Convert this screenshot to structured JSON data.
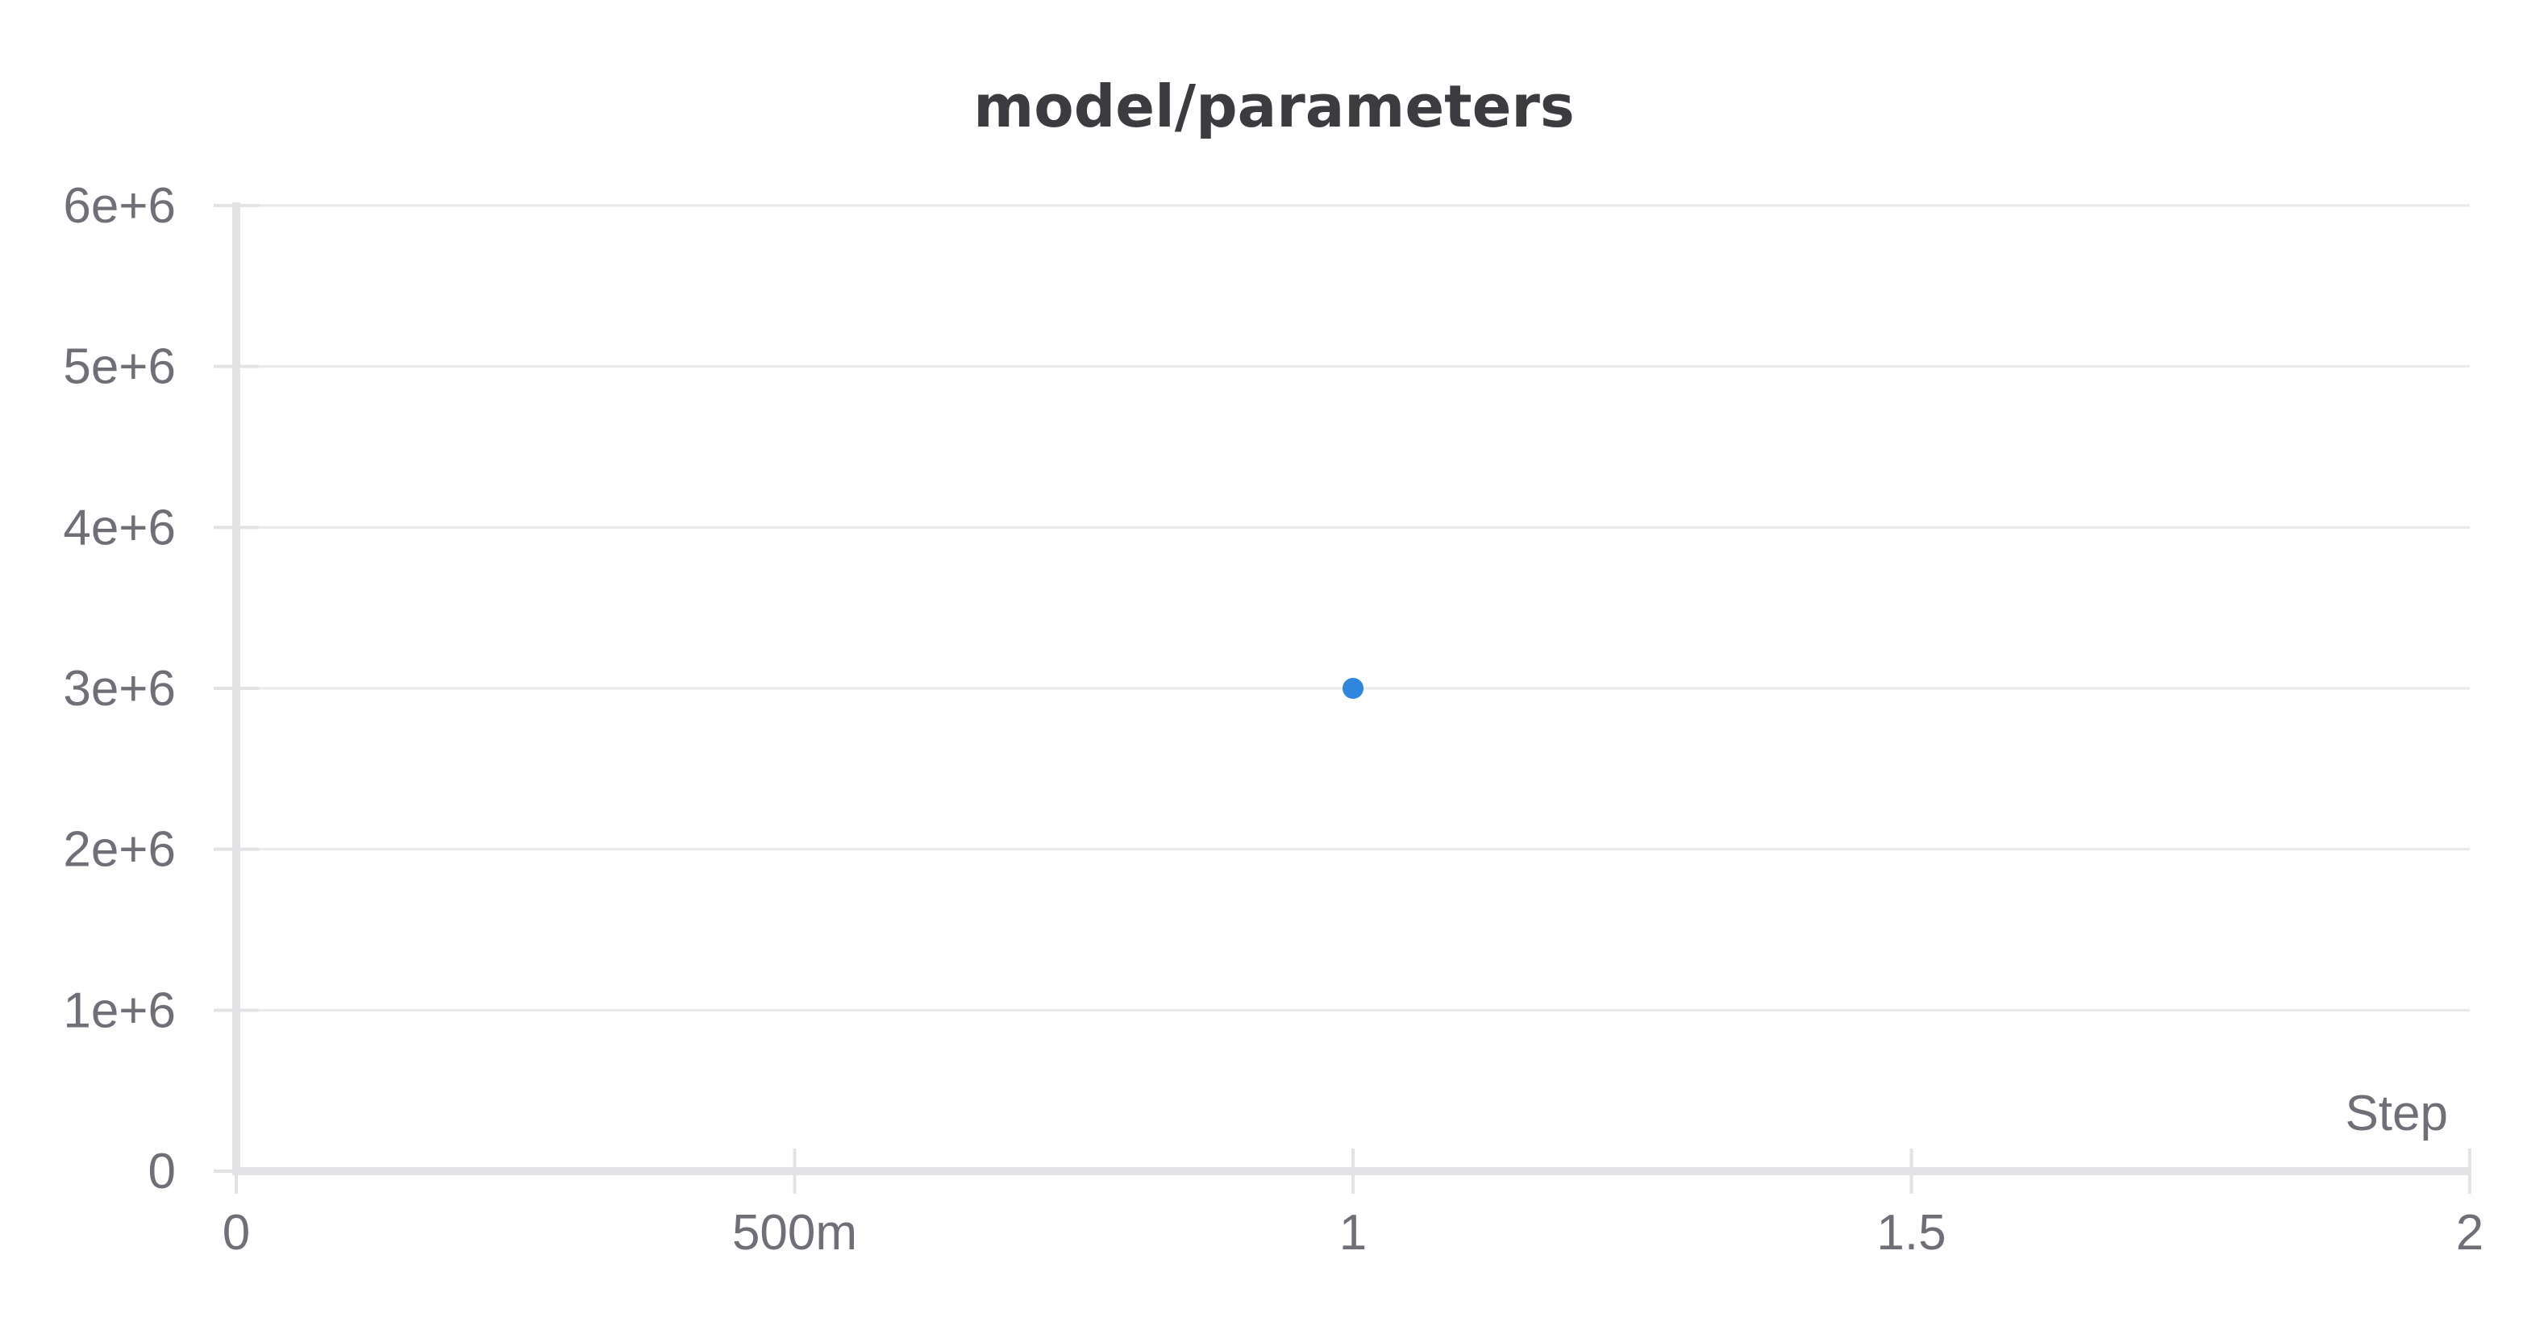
{
  "chart_data": {
    "type": "scatter",
    "title": "model/parameters",
    "xlabel": "Step",
    "ylabel": "",
    "xlim": [
      0,
      2
    ],
    "ylim": [
      0,
      6000000
    ],
    "x_ticks": [
      {
        "value": 0,
        "label": "0"
      },
      {
        "value": 0.5,
        "label": "500m"
      },
      {
        "value": 1,
        "label": "1"
      },
      {
        "value": 1.5,
        "label": "1.5"
      },
      {
        "value": 2,
        "label": "2"
      }
    ],
    "y_ticks": [
      {
        "value": 0,
        "label": "0"
      },
      {
        "value": 1000000,
        "label": "1e+6"
      },
      {
        "value": 2000000,
        "label": "2e+6"
      },
      {
        "value": 3000000,
        "label": "3e+6"
      },
      {
        "value": 4000000,
        "label": "4e+6"
      },
      {
        "value": 5000000,
        "label": "5e+6"
      },
      {
        "value": 6000000,
        "label": "6e+6"
      }
    ],
    "grid": true,
    "series": [
      {
        "color": "#2e86de",
        "points": [
          {
            "x": 1,
            "y": 3000000
          }
        ]
      }
    ]
  }
}
